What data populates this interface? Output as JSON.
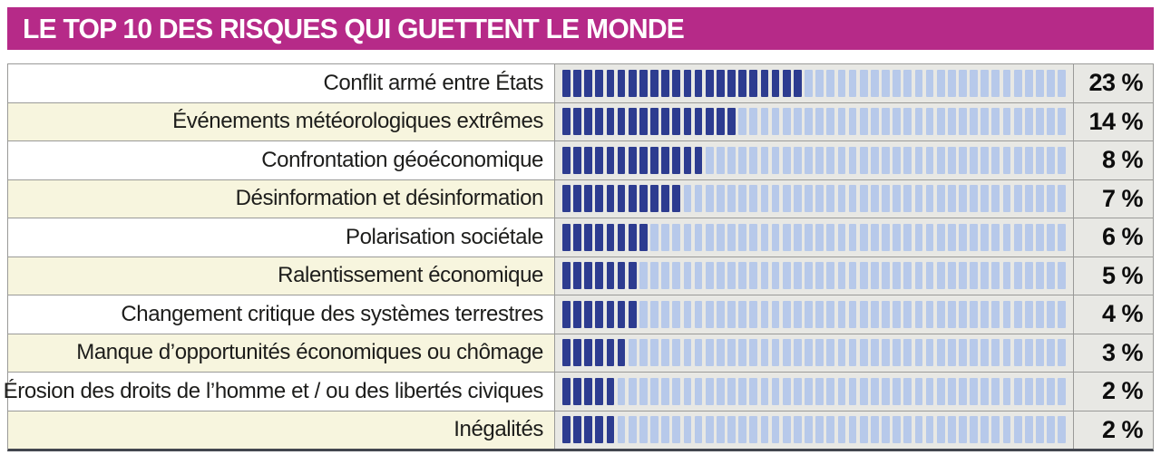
{
  "header": {
    "title": "LE TOP 10 DES RISQUES QUI GUETTENT LE MONDE"
  },
  "colors": {
    "header_bg": "#b62a88",
    "header_text": "#ffffff",
    "row_alt_bg": "#f7f5de",
    "row_bg": "#ffffff",
    "bar_panel_bg": "#e8e8e4",
    "segment_filled": "#2d3c90",
    "segment_empty": "#b7c9ea",
    "grid_line": "#9a9a98",
    "value_text": "#0d0d0d"
  },
  "chart_data": {
    "type": "bar",
    "title": "LE TOP 10 DES RISQUES QUI GUETTENT LE MONDE",
    "orientation": "horizontal",
    "unit": "%",
    "style": "segmented-tally-bar",
    "total_segments": 46,
    "xlim": [
      0,
      46
    ],
    "categories": [
      "Conflit armé entre États",
      "Événements météorologiques extrêmes",
      "Confrontation géoéconomique",
      "Désinformation et désinformation",
      "Polarisation sociétale",
      "Ralentissement économique",
      "Changement critique des systèmes terrestres",
      "Manque d’opportunités économiques ou chômage",
      "Érosion des droits de l’homme et / ou des libertés civiques",
      "Inégalités"
    ],
    "values": [
      23,
      14,
      8,
      7,
      6,
      5,
      4,
      3,
      2,
      2
    ],
    "rows": [
      {
        "label": "Conflit armé entre États",
        "value": 23,
        "display": "23 %",
        "filled_segments": 22
      },
      {
        "label": "Événements météorologiques extrêmes",
        "value": 14,
        "display": "14 %",
        "filled_segments": 16
      },
      {
        "label": "Confrontation géoéconomique",
        "value": 8,
        "display": "8 %",
        "filled_segments": 13
      },
      {
        "label": "Désinformation et désinformation",
        "value": 7,
        "display": "7 %",
        "filled_segments": 11
      },
      {
        "label": "Polarisation sociétale",
        "value": 6,
        "display": "6 %",
        "filled_segments": 8
      },
      {
        "label": "Ralentissement économique",
        "value": 5,
        "display": "5 %",
        "filled_segments": 7
      },
      {
        "label": "Changement critique des systèmes terrestres",
        "value": 4,
        "display": "4 %",
        "filled_segments": 7
      },
      {
        "label": "Manque d’opportunités économiques ou chômage",
        "value": 3,
        "display": "3 %",
        "filled_segments": 6
      },
      {
        "label": "Érosion des droits de l’homme et / ou des libertés civiques",
        "value": 2,
        "display": "2 %",
        "filled_segments": 5
      },
      {
        "label": "Inégalités",
        "value": 2,
        "display": "2 %",
        "filled_segments": 5
      }
    ]
  }
}
